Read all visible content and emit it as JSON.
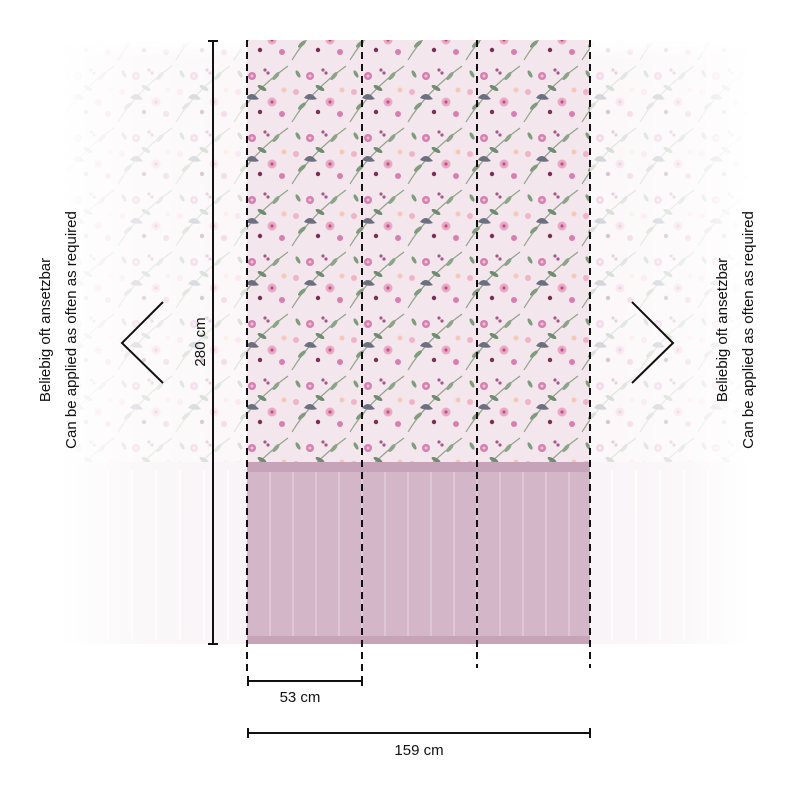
{
  "diagram": {
    "height_label": "280 cm",
    "panel_width_label": "53 cm",
    "total_width_label": "159 cm",
    "repeat_note": {
      "line1": "Beliebig oft ansetzbar",
      "line2": "Can be applied as often as required"
    },
    "panel_count": 3,
    "colors": {
      "wallpaper_background": "#f3e6ec",
      "flower_pink": "#d77fb0",
      "leaf_green": "#7f9c7c",
      "wainscot_pink": "#d3b6c8",
      "line": "#111111"
    }
  }
}
